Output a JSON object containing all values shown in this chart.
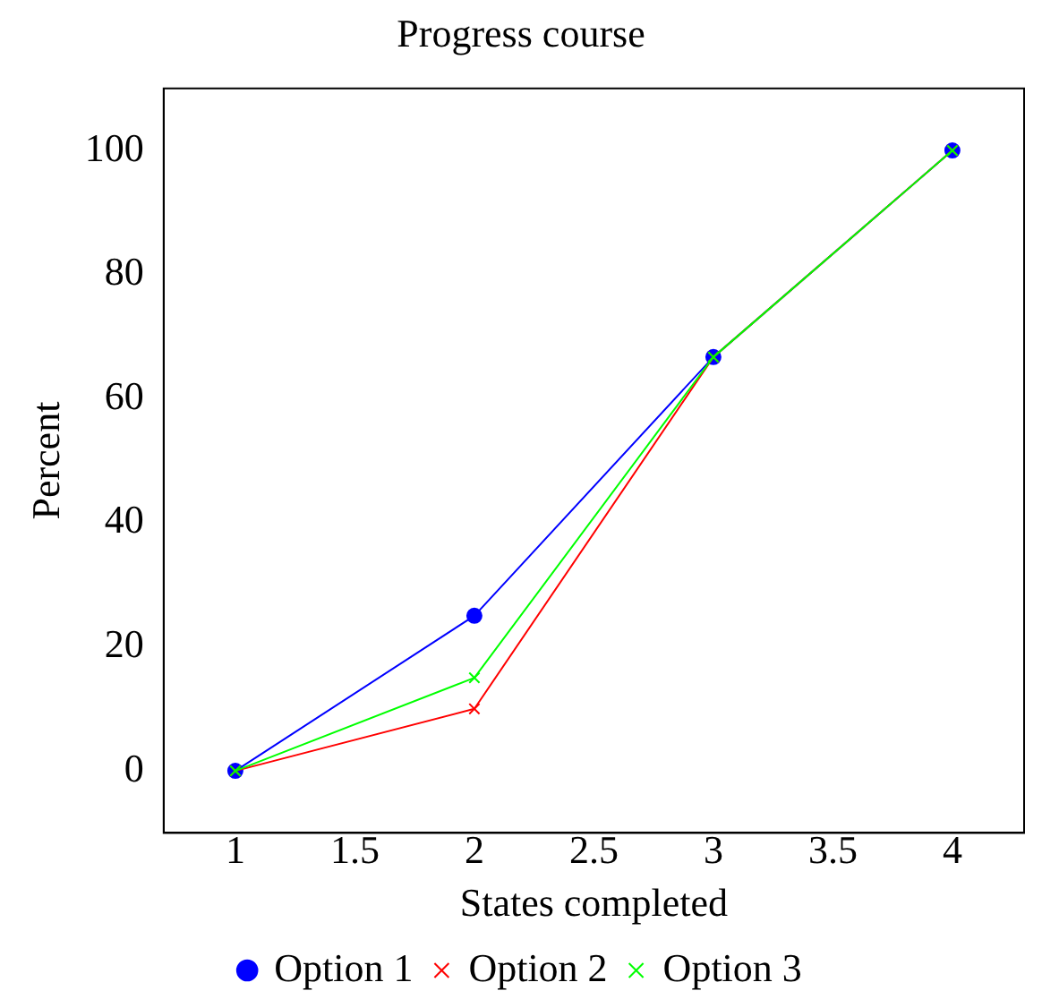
{
  "chart_data": {
    "type": "line",
    "title": "Progress course",
    "xlabel": "States completed",
    "ylabel": "Percent",
    "x": [
      1,
      2,
      3,
      4
    ],
    "series": [
      {
        "name": "Option 1",
        "color": "#0000ff",
        "marker": "circle",
        "values": [
          0,
          25,
          66.7,
          100
        ]
      },
      {
        "name": "Option 2",
        "color": "#ff0000",
        "marker": "cross",
        "values": [
          0,
          10,
          66.7,
          100
        ]
      },
      {
        "name": "Option 3",
        "color": "#00ff00",
        "marker": "cross",
        "values": [
          0,
          15,
          66.7,
          100
        ]
      }
    ],
    "xlim": [
      0.7,
      4.3
    ],
    "xticks": [
      1,
      1.5,
      2,
      2.5,
      3,
      3.5,
      4
    ],
    "ylim": [
      -10,
      110
    ],
    "yticks": [
      0,
      20,
      40,
      60,
      80,
      100
    ],
    "grid": false,
    "legend": "bottom",
    "line_style": "solid"
  }
}
